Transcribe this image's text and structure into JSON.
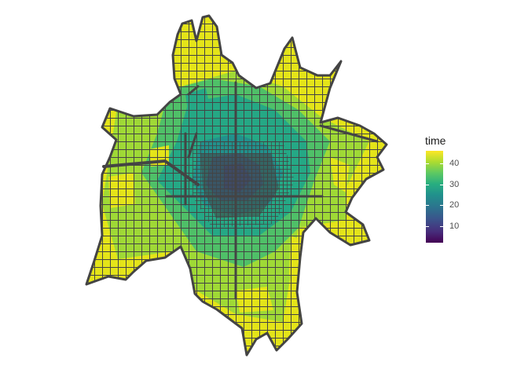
{
  "legend": {
    "title": "time",
    "ticks": [
      {
        "value": 40,
        "label": "40"
      },
      {
        "value": 30,
        "label": "30"
      },
      {
        "value": 20,
        "label": "20"
      },
      {
        "value": 10,
        "label": "10"
      }
    ],
    "range": [
      2,
      46
    ],
    "palette": "viridis",
    "colors": [
      "#440154",
      "#3b528b",
      "#21918c",
      "#5ec962",
      "#fde725"
    ]
  },
  "map": {
    "road_color": "#444444",
    "background": "#ffffff"
  }
}
